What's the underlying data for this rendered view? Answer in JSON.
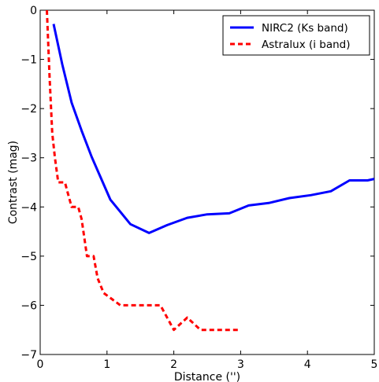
{
  "chart_data": {
    "type": "line",
    "xlabel": "Distance ('')",
    "ylabel": "Contrast (mag)",
    "xlim": [
      0,
      5
    ],
    "ylim": [
      -7,
      0
    ],
    "xticks": [
      0,
      1,
      2,
      3,
      4,
      5
    ],
    "yticks": [
      0,
      -1,
      -2,
      -3,
      -4,
      -5,
      -6,
      -7
    ],
    "legend_position": "top-right",
    "grid": false,
    "series": [
      {
        "name": "NIRC2 (Ks band)",
        "color": "#0000ff",
        "style": "solid",
        "x": [
          0.2,
          0.33,
          0.47,
          0.62,
          0.77,
          1.05,
          1.35,
          1.63,
          1.9,
          2.2,
          2.5,
          2.83,
          3.12,
          3.42,
          3.73,
          4.05,
          4.35,
          4.63,
          4.9,
          5.0
        ],
        "y": [
          -0.28,
          -1.1,
          -1.88,
          -2.45,
          -2.98,
          -3.85,
          -4.35,
          -4.53,
          -4.37,
          -4.22,
          -4.15,
          -4.13,
          -3.97,
          -3.92,
          -3.82,
          -3.76,
          -3.68,
          -3.46,
          -3.46,
          -3.43
        ]
      },
      {
        "name": "Astralux (i band)",
        "color": "#ff0000",
        "style": "dashed",
        "x": [
          0.1,
          0.14,
          0.18,
          0.22,
          0.27,
          0.37,
          0.42,
          0.47,
          0.57,
          0.62,
          0.7,
          0.8,
          0.86,
          0.95,
          1.05,
          1.2,
          1.4,
          1.6,
          1.8,
          2.0,
          2.2,
          2.4,
          2.6,
          2.8,
          3.0
        ],
        "y": [
          0.0,
          -1.35,
          -2.5,
          -3.0,
          -3.5,
          -3.5,
          -3.75,
          -4.0,
          -4.0,
          -4.25,
          -5.0,
          -5.0,
          -5.45,
          -5.75,
          -5.85,
          -6.0,
          -6.0,
          -6.0,
          -6.0,
          -6.5,
          -6.25,
          -6.5,
          -6.5,
          -6.5,
          -6.5
        ]
      }
    ]
  }
}
